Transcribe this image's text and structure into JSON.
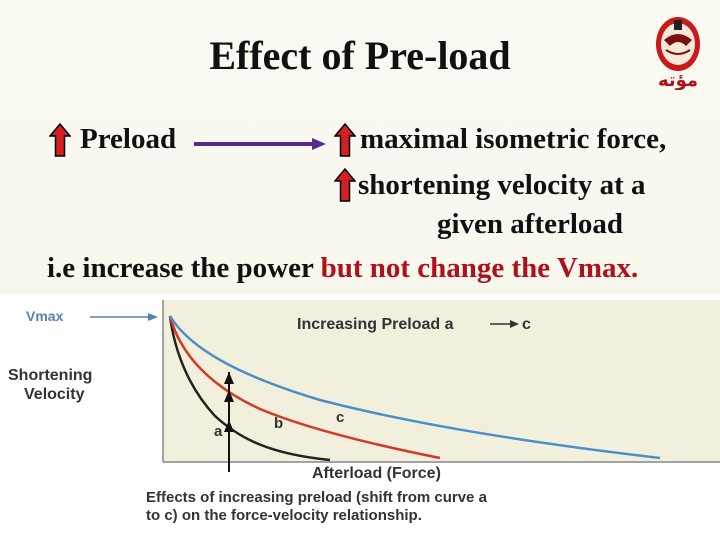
{
  "slide": {
    "title": "Effect of Pre-load",
    "logo_text": "مؤته",
    "line1": {
      "left": "Preload",
      "right": "maximal isometric force,"
    },
    "line2": "shortening velocity at a",
    "line3": "given afterload",
    "line4": {
      "black": "i.e increase the power ",
      "red": "but not change the Vmax."
    },
    "colors": {
      "arrow_red": "#d42020",
      "connector": "#5a2a8a",
      "emphasis": "#b0101a"
    },
    "icons": {
      "up_arrow": "up-arrow-icon",
      "right_arrow": "right-arrow-icon"
    }
  },
  "figure": {
    "vmax_label": "Vmax",
    "y_label_line1": "Shortening",
    "y_label_line2": "Velocity",
    "increasing_label": "Increasing Preload a",
    "increasing_end": "c",
    "x_label": "Afterload (Force)",
    "caption_line1": "Effects of increasing preload (shift from curve a",
    "caption_line2": "to c) on the force-velocity relationship.",
    "curve_labels": {
      "a": "a",
      "b": "b",
      "c": "c"
    },
    "colors": {
      "a": "#222222",
      "b": "#d23a2a",
      "c": "#4a90c8",
      "plot_bg": "#f2efdc"
    }
  }
}
